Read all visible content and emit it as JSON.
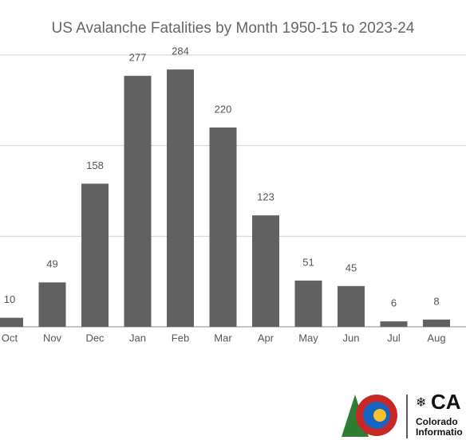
{
  "chart_data": {
    "type": "bar",
    "title": "US Avalanche Fatalities by Month 1950-15 to 2023-24",
    "categories": [
      "Oct",
      "Nov",
      "Dec",
      "Jan",
      "Feb",
      "Mar",
      "Apr",
      "May",
      "Jun",
      "Jul",
      "Aug"
    ],
    "values": [
      10,
      49,
      158,
      277,
      284,
      220,
      123,
      51,
      45,
      6,
      8
    ],
    "color": "#616161",
    "ylim": [
      0,
      300
    ],
    "yticks": [
      0,
      100,
      200,
      300
    ],
    "grid": true
  },
  "logo": {
    "mark": "CA",
    "line1": "Colorado",
    "line2": "Informatio"
  }
}
